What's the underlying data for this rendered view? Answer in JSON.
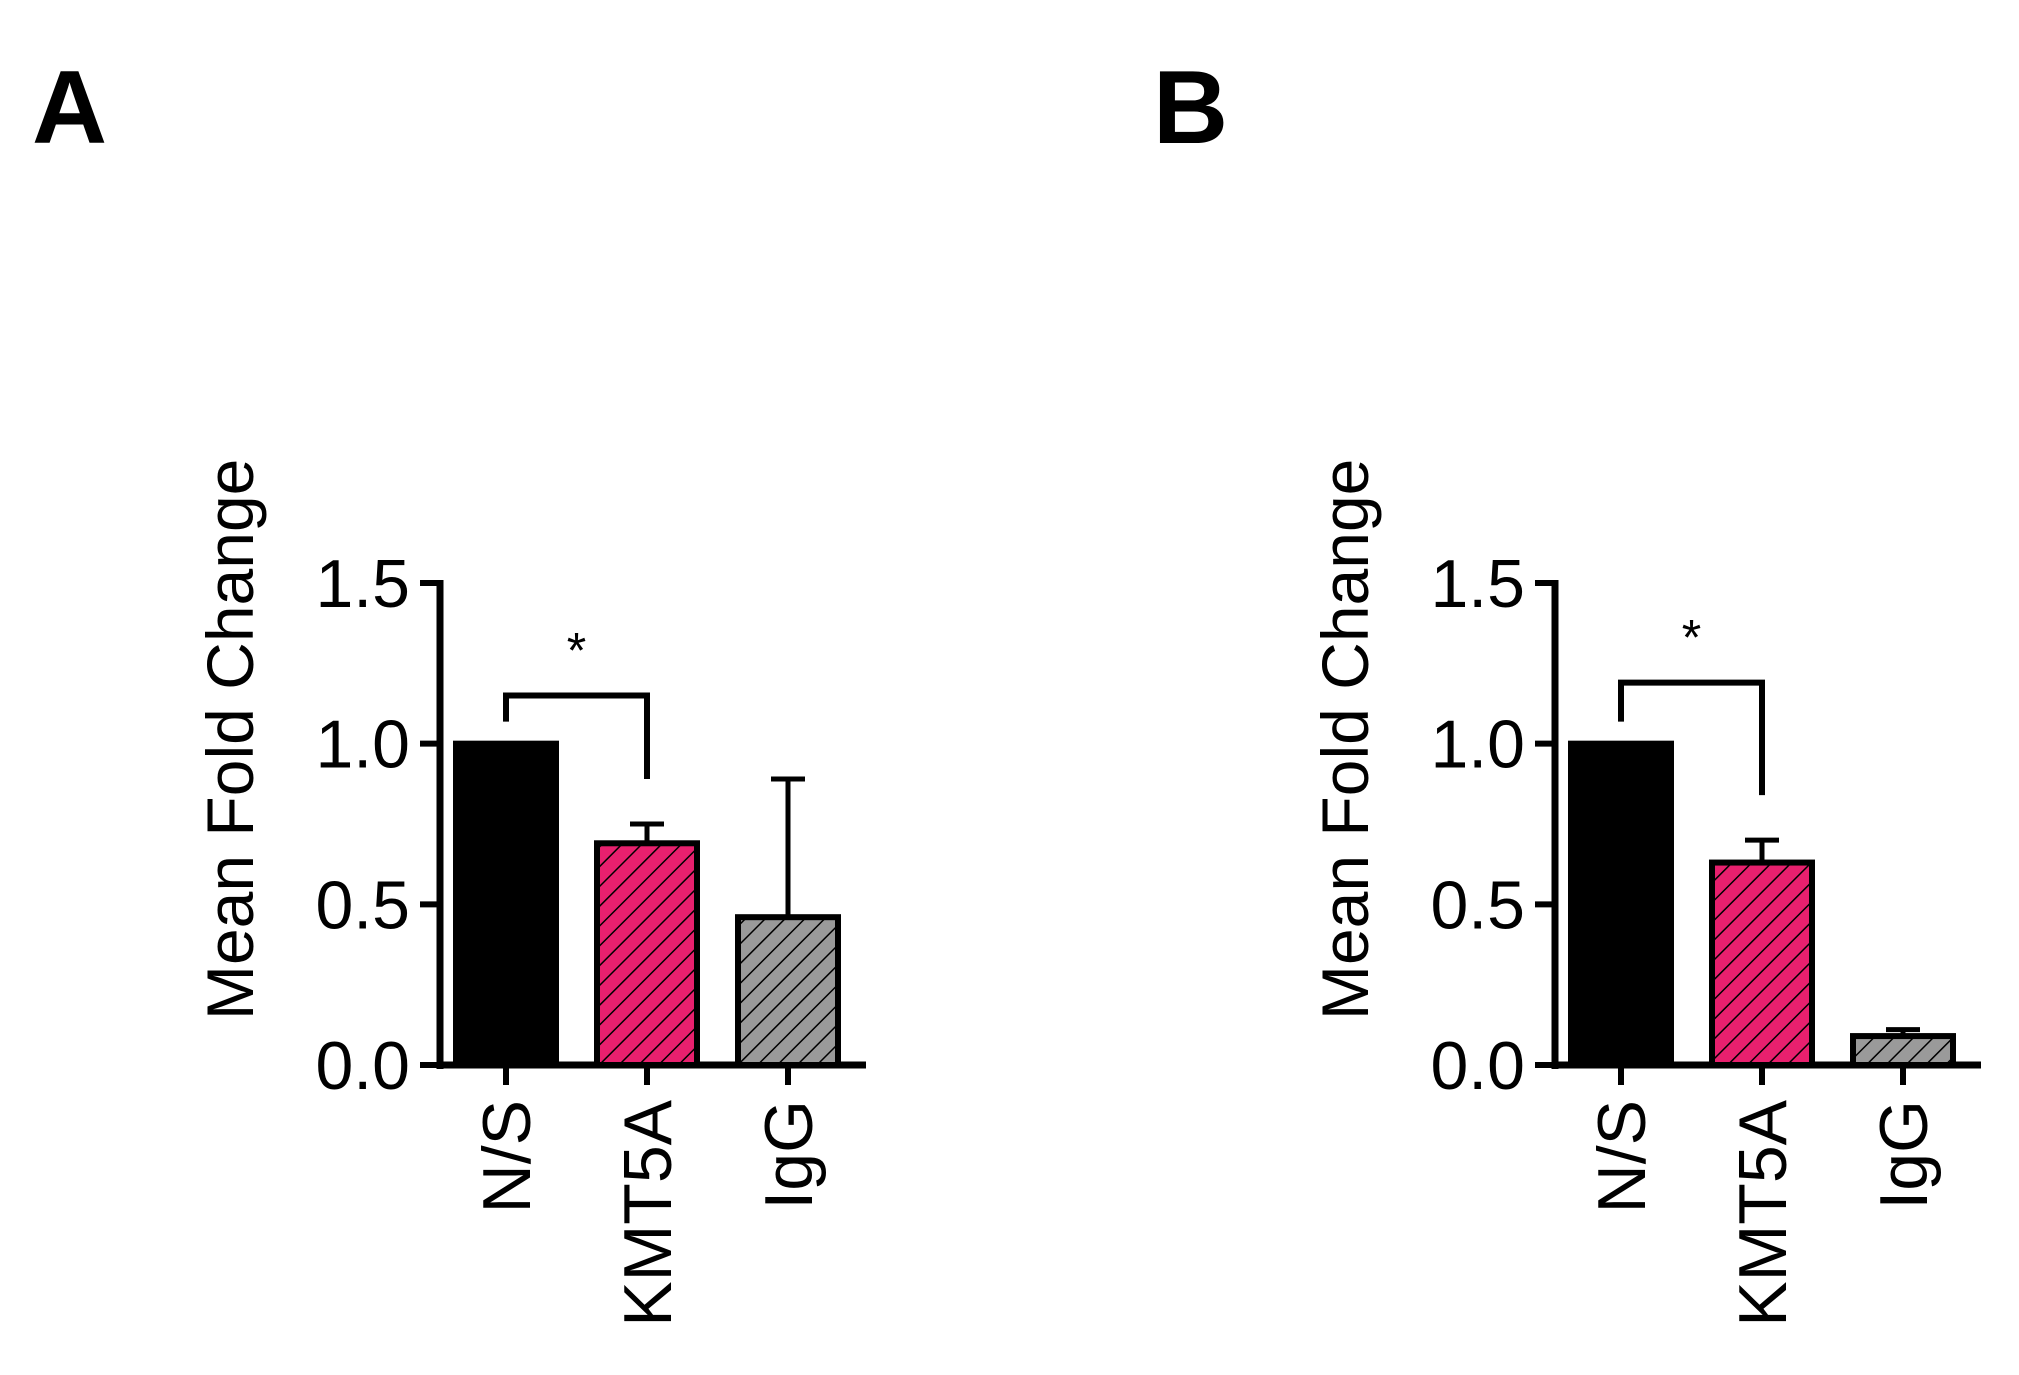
{
  "chart_data": [
    {
      "panel": "A",
      "type": "bar",
      "ylabel": "Mean Fold  Change",
      "ylim": [
        0,
        1.5
      ],
      "yticks": [
        "0.0",
        "0.5",
        "1.0",
        "1.5"
      ],
      "categories": [
        "N/S",
        "KMT5A",
        "IgG"
      ],
      "values": [
        1.0,
        0.69,
        0.46
      ],
      "errors": [
        0.0,
        0.06,
        0.43
      ],
      "significance": {
        "from": 0,
        "to": 1,
        "label": "*",
        "level": 1.15
      }
    },
    {
      "panel": "B",
      "type": "bar",
      "ylabel": "Mean Fold  Change",
      "ylim": [
        0,
        1.5
      ],
      "yticks": [
        "0.0",
        "0.5",
        "1.0",
        "1.5"
      ],
      "categories": [
        "N/S",
        "KMT5A",
        "IgG"
      ],
      "values": [
        1.0,
        0.63,
        0.09
      ],
      "errors": [
        0.0,
        0.07,
        0.02
      ],
      "significance": {
        "from": 0,
        "to": 1,
        "label": "*",
        "level": 1.19
      }
    }
  ],
  "colors": {
    "N/S": "#000000",
    "KMT5A": "#e8206e",
    "IgG": "#9a9a9a"
  }
}
